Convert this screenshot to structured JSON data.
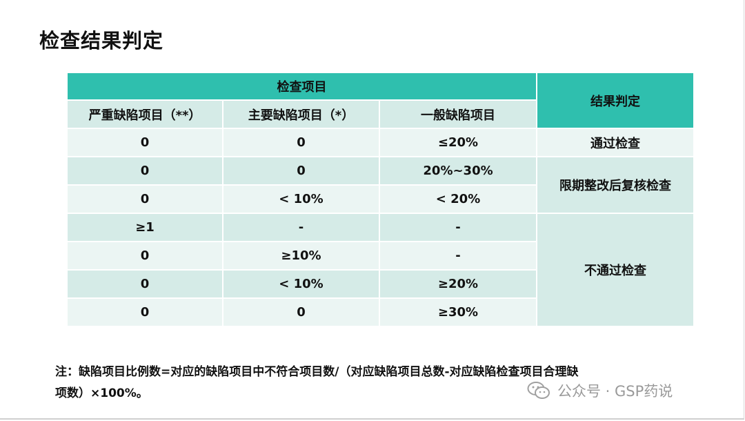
{
  "title": "检查结果判定",
  "table": {
    "group_header": "检查项目",
    "result_header": "结果判定",
    "columns": [
      "严重缺陷项目（**）",
      "主要缺陷项目（*）",
      "一般缺陷项目"
    ],
    "rows": [
      [
        "0",
        "0",
        "≤20%"
      ],
      [
        "0",
        "0",
        "20%~30%"
      ],
      [
        "0",
        "< 10%",
        "< 20%"
      ],
      [
        "≥1",
        "-",
        "-"
      ],
      [
        "0",
        "≥10%",
        "-"
      ],
      [
        "0",
        "< 10%",
        "≥20%"
      ],
      [
        "0",
        "0",
        "≥30%"
      ]
    ],
    "results": [
      "通过检查",
      "限期整改后复核检查",
      "不通过检查"
    ]
  },
  "note_line1": "注：缺陷项目比例数=对应的缺陷项目中不符合项目数/（对应缺陷项目总数-对应缺陷检查项目合理缺",
  "note_line2": "项数）×100%。",
  "watermark": "公众号 · GSP药说",
  "icon_names": [
    "wechat-icon"
  ]
}
